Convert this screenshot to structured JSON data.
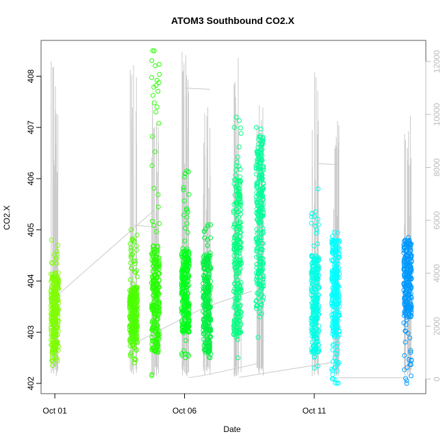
{
  "chart_data": {
    "type": "scatter",
    "title": "ATOM3 Southbound CO2.X",
    "xlabel": "Date",
    "ylabel": "CO2.X",
    "x_unit": "days since Oct 01",
    "xlim": [
      -0.53,
      14.3
    ],
    "ylim": [
      401.8,
      408.7
    ],
    "y2lim": [
      -550,
      12800
    ],
    "x_ticks": [
      {
        "value": 0,
        "label": "Oct 01"
      },
      {
        "value": 5,
        "label": "Oct 06"
      },
      {
        "value": 10,
        "label": "Oct 11"
      }
    ],
    "y_ticks": [
      "402",
      "403",
      "404",
      "405",
      "406",
      "407",
      "408"
    ],
    "y2_ticks": [
      "0",
      "2000",
      "4000",
      "6000",
      "8000",
      "10000",
      "12000"
    ],
    "grid": false,
    "series": [
      {
        "name": "CO2.X points",
        "clusters": [
          {
            "day": 0.0,
            "min": 402.35,
            "max": 404.8,
            "core": [
              402.6,
              404.1
            ],
            "color": "#7fff00",
            "spike_max": 12100
          },
          {
            "day": 3.03,
            "min": 402.4,
            "max": 405.0,
            "core": [
              402.8,
              403.9
            ],
            "color": "#4cff00",
            "spike_max": 12600
          },
          {
            "day": 3.88,
            "min": 402.15,
            "max": 408.5,
            "core": [
              402.6,
              404.7
            ],
            "color": "#26ff00",
            "spike_max": 10500
          },
          {
            "day": 5.03,
            "min": 402.5,
            "max": 406.15,
            "core": [
              403.0,
              404.6
            ],
            "color": "#00ff19",
            "spike_max": 12650
          },
          {
            "day": 5.86,
            "min": 402.5,
            "max": 405.1,
            "core": [
              402.6,
              404.5
            ],
            "color": "#00f040",
            "spike_max": 10400
          },
          {
            "day": 7.04,
            "min": 402.5,
            "max": 407.2,
            "core": [
              402.9,
              406.0
            ],
            "color": "#00ff80",
            "spike_max": 12200
          },
          {
            "day": 7.9,
            "min": 402.9,
            "max": 407.0,
            "core": [
              403.5,
              406.8
            ],
            "color": "#00ff99",
            "spike_max": 10500
          },
          {
            "day": 10.03,
            "min": 402.3,
            "max": 405.8,
            "core": [
              402.6,
              404.5
            ],
            "color": "#00ffe6",
            "spike_max": 11750
          },
          {
            "day": 10.82,
            "min": 402.0,
            "max": 404.95,
            "core": [
              402.9,
              404.8
            ],
            "color": "#00ffff",
            "spike_max": 10050
          },
          {
            "day": 13.6,
            "min": 402.0,
            "max": 404.85,
            "core": [
              403.3,
              404.8
            ],
            "color": "#0099ff",
            "spike_max": 10000
          }
        ]
      },
      {
        "name": "secondary (gray line)",
        "axis": "right",
        "color": "#c8c8c8",
        "segments": [
          [
            [
              0.05,
              3125
            ],
            [
              3.85,
              6400
            ]
          ],
          [
            [
              3.05,
              5820
            ],
            [
              3.85,
              5740
            ]
          ],
          [
            [
              3.05,
              1340
            ],
            [
              5.7,
              2680
            ],
            [
              7.6,
              3330
            ]
          ],
          [
            [
              5.03,
              11000
            ],
            [
              5.98,
              10950
            ]
          ],
          [
            [
              5.15,
              50
            ],
            [
              5.85,
              160
            ],
            [
              7.8,
              580
            ]
          ],
          [
            [
              7.1,
              60
            ],
            [
              7.95,
              200
            ],
            [
              10.7,
              630
            ]
          ],
          [
            [
              10.1,
              8150
            ],
            [
              10.9,
              8100
            ]
          ],
          [
            [
              10.9,
              50
            ],
            [
              13.5,
              50
            ]
          ]
        ]
      }
    ]
  }
}
